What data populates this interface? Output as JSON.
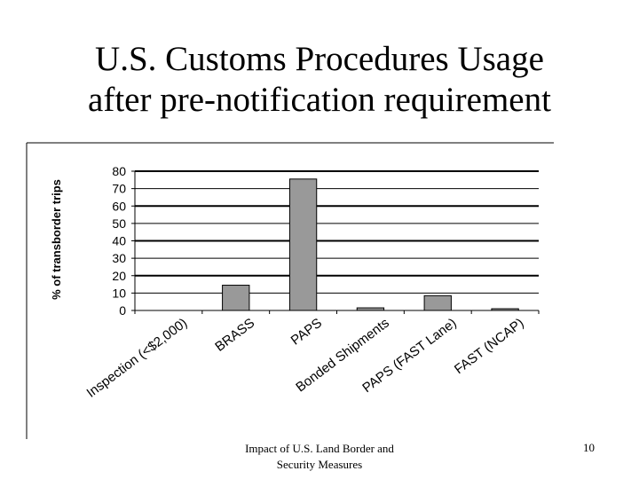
{
  "slide": {
    "title_line1": "U.S. Customs Procedures Usage",
    "title_line2": "after pre-notification requirement",
    "footer_line1": "Impact of U.S. Land Border and",
    "footer_line2": "Security Measures",
    "page_number": "10"
  },
  "colors": {
    "bar_fill": "#999999",
    "bar_stroke": "#000000",
    "gridline": "#000000"
  },
  "chart_data": {
    "type": "bar",
    "title": "",
    "xlabel": "",
    "ylabel": "% of transborder trips",
    "ylim": [
      0,
      80
    ],
    "yticks": [
      0,
      10,
      20,
      30,
      40,
      50,
      60,
      70,
      80
    ],
    "grid": true,
    "legend": "none",
    "categories": [
      "Inspection (<$2,000)",
      "BRASS",
      "PAPS",
      "Bonded Shipments",
      "PAPS (FAST Lane)",
      "FAST (NCAP)"
    ],
    "values": [
      0,
      14.5,
      75.5,
      1.5,
      8.5,
      1
    ]
  }
}
